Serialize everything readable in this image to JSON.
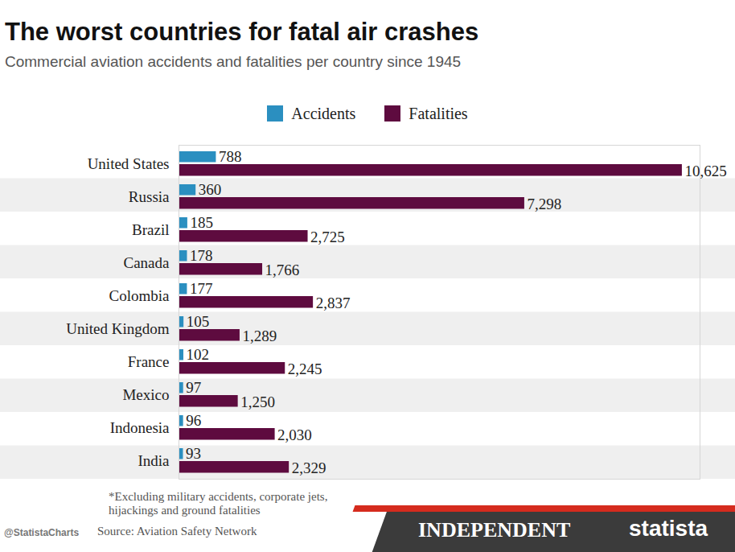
{
  "chart_data": {
    "type": "bar",
    "orientation": "horizontal",
    "title": "The worst countries for fatal air crashes",
    "subtitle": "Commercial aviation accidents and fatalities per country since 1945",
    "categories": [
      "United States",
      "Russia",
      "Brazil",
      "Canada",
      "Colombia",
      "United Kingdom",
      "France",
      "Mexico",
      "Indonesia",
      "India"
    ],
    "series": [
      {
        "name": "Accidents",
        "color": "#2b8fc0",
        "values": [
          788,
          360,
          185,
          178,
          177,
          105,
          102,
          97,
          96,
          93
        ]
      },
      {
        "name": "Fatalities",
        "color": "#5e0b3f",
        "values": [
          10625,
          7298,
          2725,
          1766,
          2837,
          1289,
          2245,
          1250,
          2030,
          2329
        ],
        "value_labels": [
          "10,625",
          "7,298",
          "2,725",
          "1,766",
          "2,837",
          "1,289",
          "2,245",
          "1,250",
          "2,030",
          "2,329"
        ]
      }
    ],
    "xlim": [
      0,
      11000
    ],
    "xticks": [],
    "tick_labels": "y",
    "data_labels": true,
    "legend": "top",
    "footnote": "*Excluding military accidents, corporate jets, hijackings and ground fatalities",
    "source": "Source: Aviation Safety Network",
    "credits": [
      "@StatistaCharts",
      "INDEPENDENT",
      "statista"
    ]
  }
}
